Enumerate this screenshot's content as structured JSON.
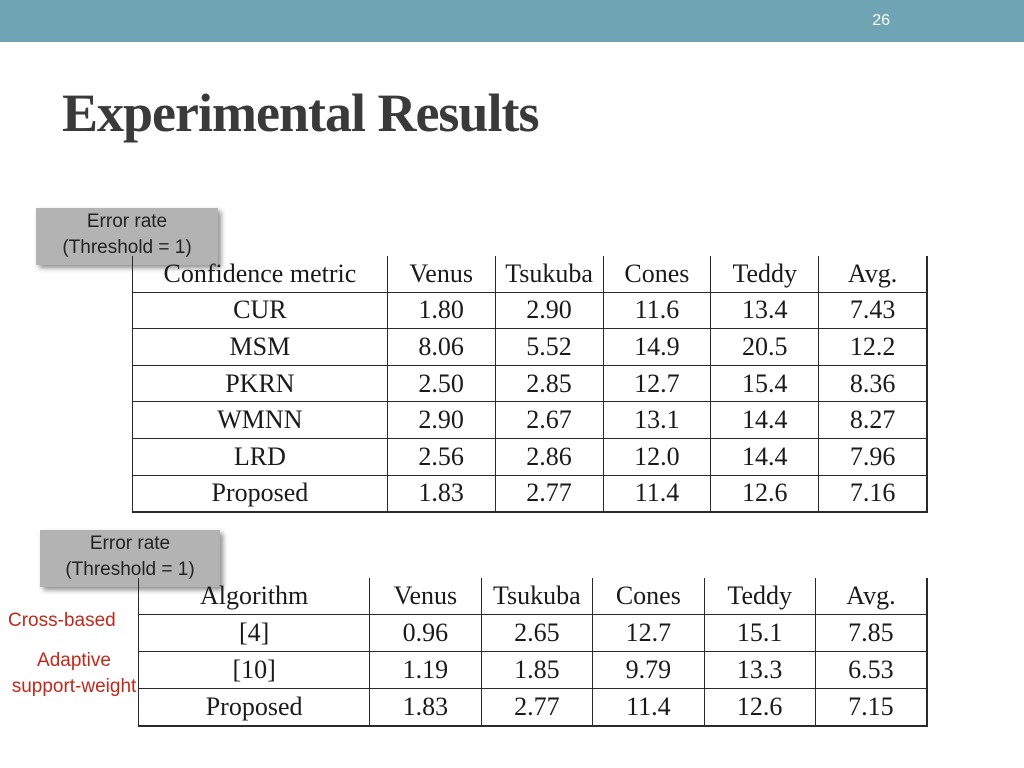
{
  "slide": {
    "number": "26",
    "title": "Experimental Results",
    "colors": {
      "top_bar": "#6fa4b5",
      "label_red": "#c0281a",
      "callout_gray": "#b3b3b3"
    }
  },
  "callouts": [
    {
      "line1": "Error rate",
      "line2": "(Threshold = 1)"
    },
    {
      "line1": "Error rate",
      "line2": "(Threshold = 1)"
    }
  ],
  "table1": {
    "headers": [
      "Confidence metric",
      "Venus",
      "Tsukuba",
      "Cones",
      "Teddy",
      "Avg."
    ],
    "rows": [
      [
        "CUR",
        "1.80",
        "2.90",
        "11.6",
        "13.4",
        "7.43"
      ],
      [
        "MSM",
        "8.06",
        "5.52",
        "14.9",
        "20.5",
        "12.2"
      ],
      [
        "PKRN",
        "2.50",
        "2.85",
        "12.7",
        "15.4",
        "8.36"
      ],
      [
        "WMNN",
        "2.90",
        "2.67",
        "13.1",
        "14.4",
        "8.27"
      ],
      [
        "LRD",
        "2.56",
        "2.86",
        "12.0",
        "14.4",
        "7.96"
      ],
      [
        "Proposed",
        "1.83",
        "2.77",
        "11.4",
        "12.6",
        "7.16"
      ]
    ]
  },
  "table2": {
    "headers": [
      "Algorithm",
      "Venus",
      "Tsukuba",
      "Cones",
      "Teddy",
      "Avg."
    ],
    "rows": [
      [
        "[4]",
        "0.96",
        "2.65",
        "12.7",
        "15.1",
        "7.85"
      ],
      [
        "[10]",
        "1.19",
        "1.85",
        "9.79",
        "13.3",
        "6.53"
      ],
      [
        "Proposed",
        "1.83",
        "2.77",
        "11.4",
        "12.6",
        "7.15"
      ]
    ]
  },
  "side_labels": {
    "cross_based": "Cross-based",
    "adaptive_line1": "Adaptive",
    "adaptive_line2": "support-weight"
  }
}
